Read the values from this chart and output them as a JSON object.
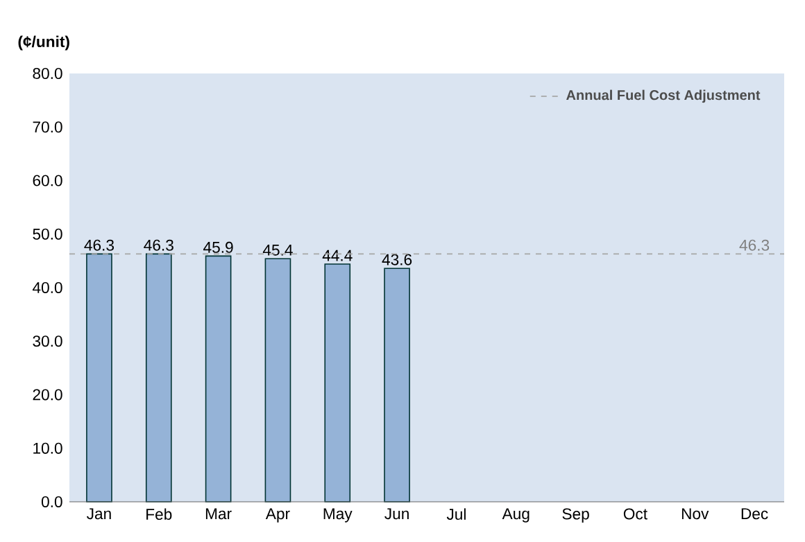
{
  "chart_data": {
    "type": "bar",
    "ylabel": "(¢/unit)",
    "categories": [
      "Jan",
      "Feb",
      "Mar",
      "Apr",
      "May",
      "Jun",
      "Jul",
      "Aug",
      "Sep",
      "Oct",
      "Nov",
      "Dec"
    ],
    "values": [
      46.3,
      46.3,
      45.9,
      45.4,
      44.4,
      43.6,
      null,
      null,
      null,
      null,
      null,
      null
    ],
    "color": "#95b3d7",
    "ylim": [
      0,
      80
    ],
    "yticks": [
      {
        "value": 0,
        "label": "0.0"
      },
      {
        "value": 10,
        "label": "10.0"
      },
      {
        "value": 20,
        "label": "20.0"
      },
      {
        "value": 30,
        "label": "30.0"
      },
      {
        "value": 40,
        "label": "40.0"
      },
      {
        "value": 50,
        "label": "50.0"
      },
      {
        "value": 60,
        "label": "60.0"
      },
      {
        "value": 70,
        "label": "70.0"
      },
      {
        "value": 80,
        "label": "80.0"
      }
    ],
    "data_labels": true,
    "ref_lines": [
      {
        "axis": "y",
        "value": 46.3,
        "label": "Annual Fuel Cost Adjustment",
        "color": "#a6a6a6",
        "line_style": "dashed"
      }
    ],
    "annotations": [
      {
        "text": "46.3",
        "x": "Dec",
        "y": 46.3
      }
    ],
    "legend": "top right",
    "grid": false
  }
}
